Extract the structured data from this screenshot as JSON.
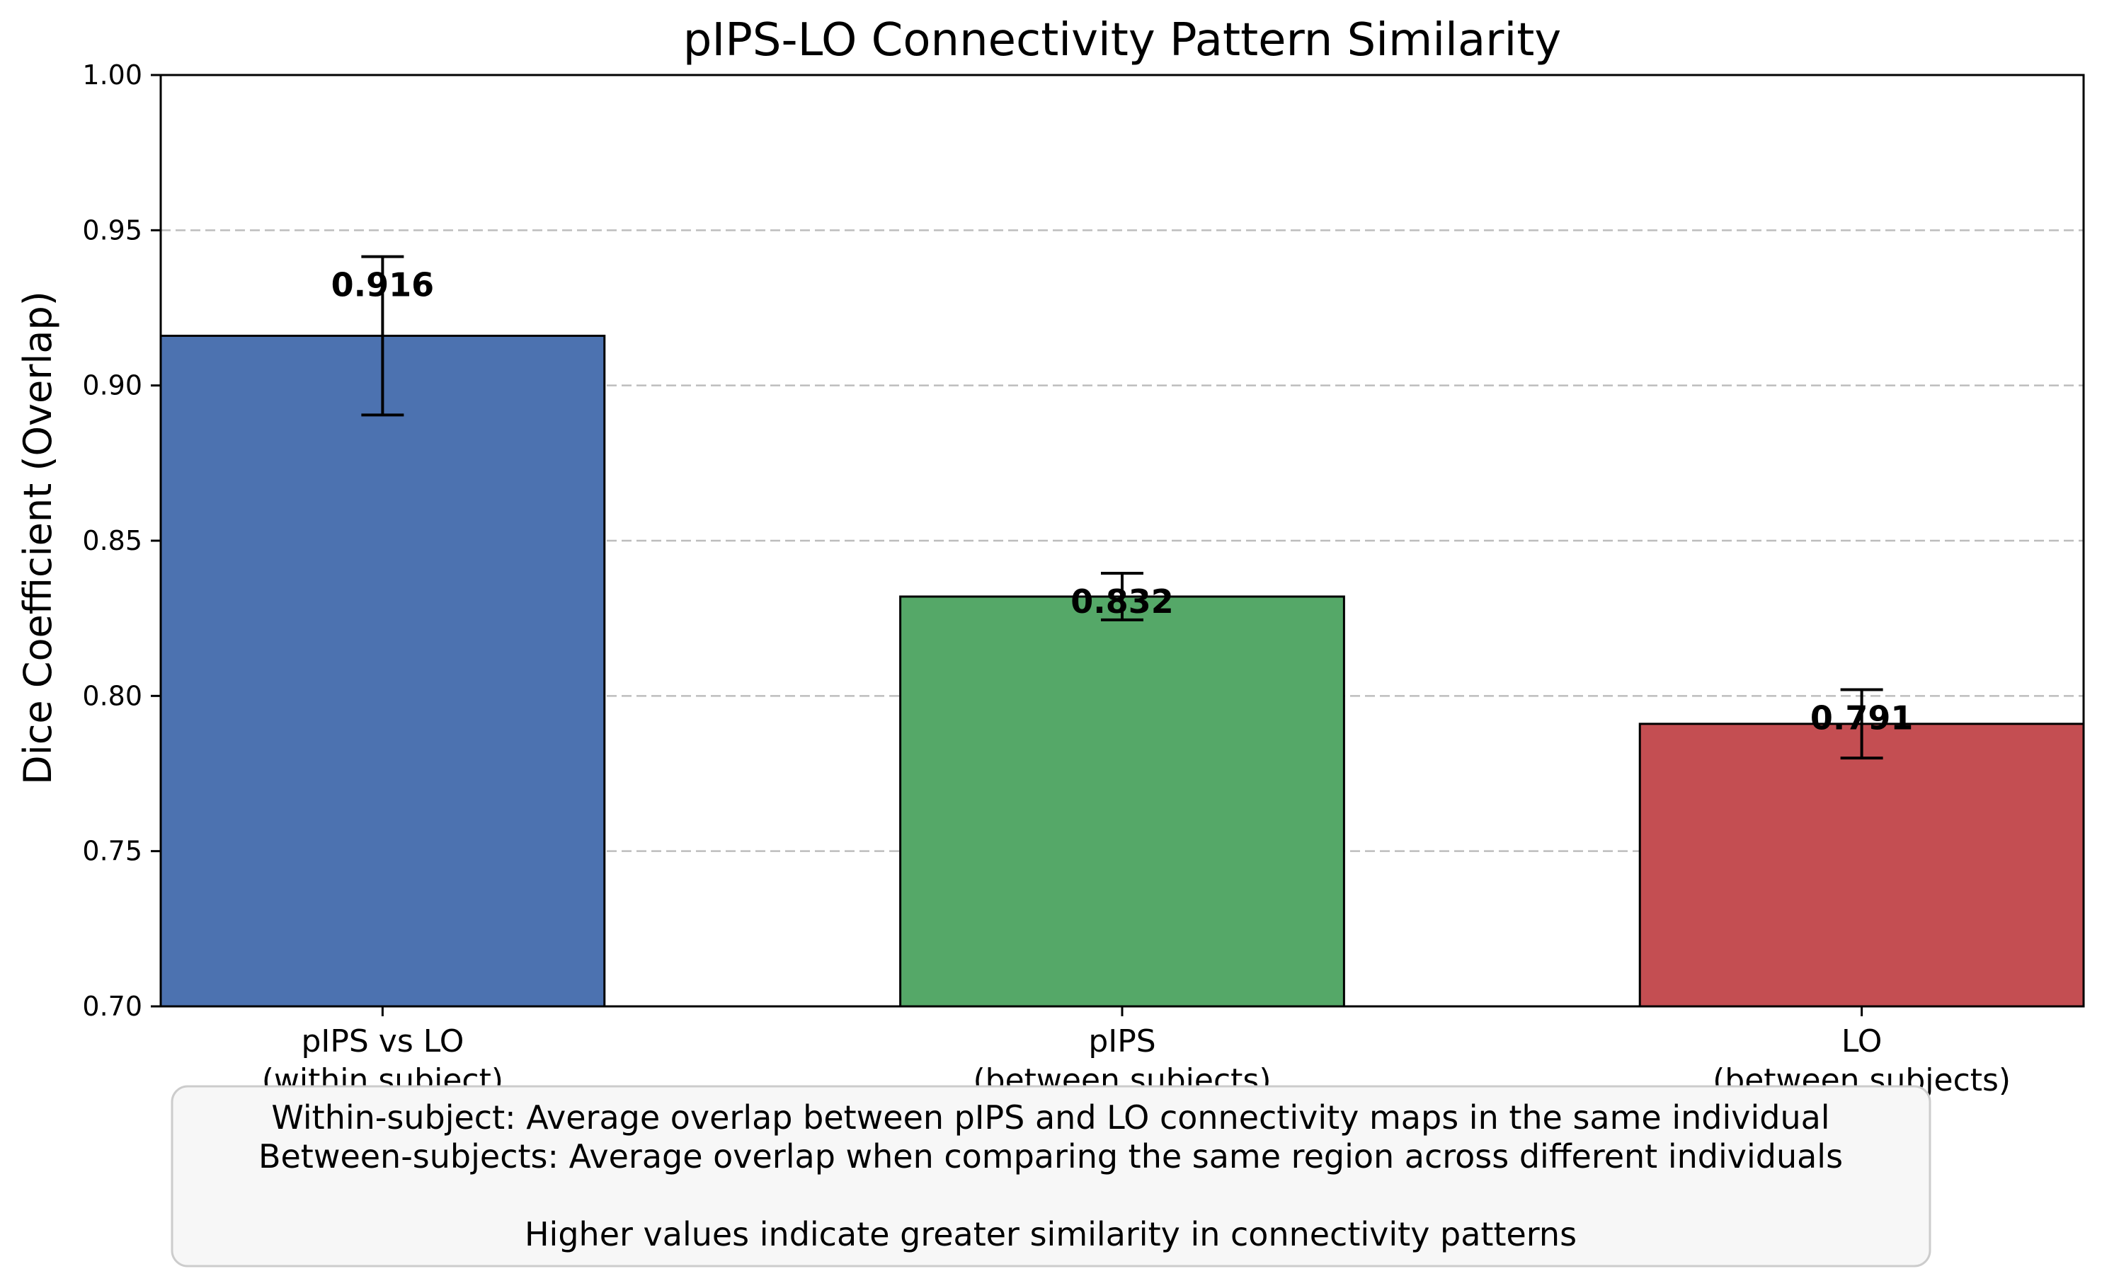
{
  "chart_data": {
    "type": "bar",
    "title": "pIPS-LO Connectivity Pattern Similarity",
    "xlabel": "",
    "ylabel": "Dice Coefficient (Overlap)",
    "ylim": [
      0.7,
      1.0
    ],
    "yticks": [
      "0.70",
      "0.75",
      "0.80",
      "0.85",
      "0.90",
      "0.95",
      "1.00"
    ],
    "grid": "y-dashed",
    "categories": [
      {
        "line1": "pIPS vs LO",
        "line2": "(within subject)"
      },
      {
        "line1": "pIPS",
        "line2": "(between subjects)"
      },
      {
        "line1": "LO",
        "line2": "(between subjects)"
      }
    ],
    "values": [
      0.916,
      0.832,
      0.791
    ],
    "value_labels": [
      "0.916",
      "0.832",
      "0.791"
    ],
    "errors": [
      0.0255,
      0.0075,
      0.011
    ],
    "colors": [
      "#4c72b0",
      "#55a868",
      "#c44e52"
    ],
    "annotation": {
      "lines": [
        "Within-subject: Average overlap between pIPS and LO connectivity maps in the same individual",
        "Between-subjects: Average overlap when comparing the same region across different individuals",
        "",
        "Higher values indicate greater similarity in connectivity patterns"
      ]
    }
  }
}
